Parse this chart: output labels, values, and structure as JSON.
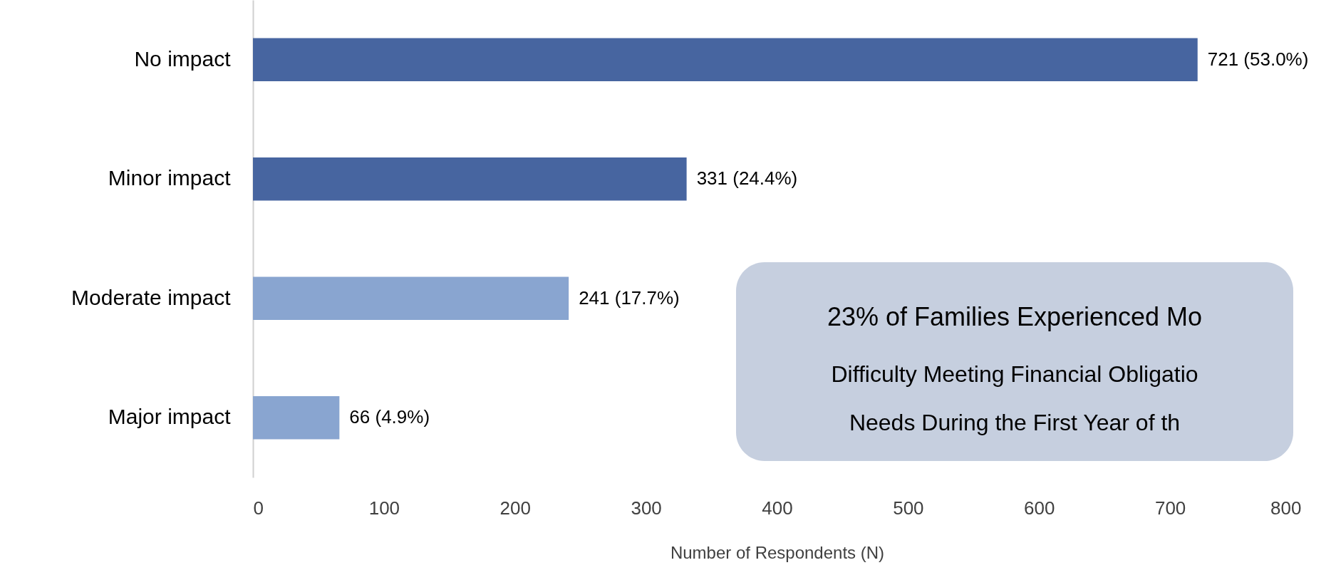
{
  "chart_data": {
    "type": "bar",
    "orientation": "horizontal",
    "xlabel": "Number of Respondents (N)",
    "categories": [
      "No impact",
      "Minor impact",
      "Moderate impact",
      "Major impact"
    ],
    "values": [
      721,
      331,
      241,
      66
    ],
    "colors": [
      "#4765a0",
      "#4765a0",
      "#89a5d0",
      "#89a5d0"
    ],
    "value_labels": [
      "721 (53.0%)",
      "331 (24.4%)",
      "241 (17.7%)",
      "66 (4.9%)"
    ],
    "xlim": [
      0,
      800
    ],
    "xticks": [
      0,
      100,
      200,
      300,
      400,
      500,
      600,
      700,
      800
    ],
    "annotations": [
      "23% of Families Experienced Mo",
      "Difficulty Meeting Financial Obligatio",
      "Needs During the First Year of th"
    ]
  }
}
